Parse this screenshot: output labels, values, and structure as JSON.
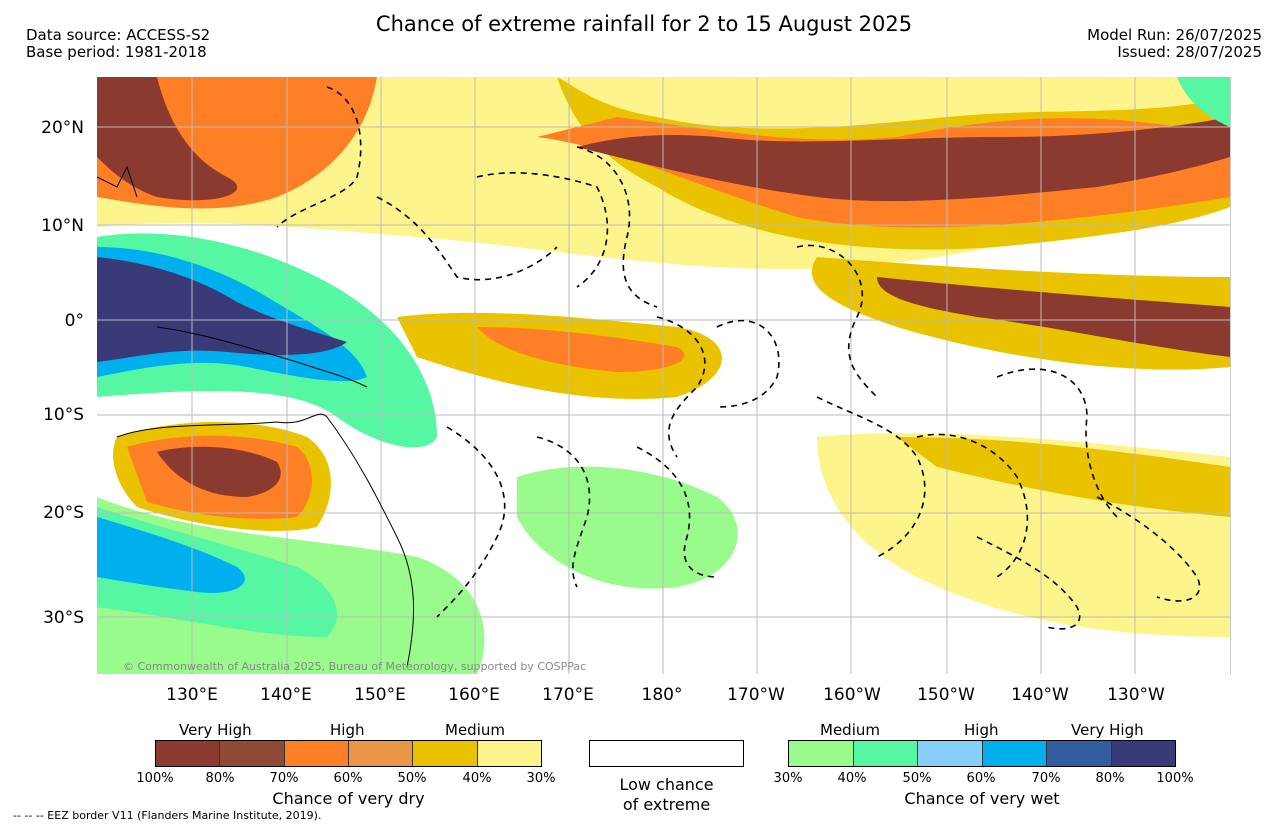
{
  "title": "Chance of extreme rainfall for 2 to 15 August 2025",
  "data_source": "Data source: ACCESS-S2",
  "base_period": "Base period: 1981-2018",
  "model_run": "Model Run: 26/07/2025",
  "issued": "Issued: 28/07/2025",
  "copyright": "© Commonwealth of Australia 2025, Bureau of Meteorology, supported by COSPPac",
  "eez_note": "-- -- -- EEZ border V11 (Flanders Marine Institute, 2019).",
  "lat_labels": [
    "20°N",
    "10°N",
    "0°",
    "10°S",
    "20°S",
    "30°S"
  ],
  "lon_labels": [
    "130°E",
    "140°E",
    "150°E",
    "160°E",
    "170°E",
    "180°",
    "170°W",
    "160°W",
    "150°W",
    "140°W",
    "130°W"
  ],
  "legend_dry": {
    "categories": [
      "Very High",
      "High",
      "Medium"
    ],
    "ticks": [
      "100%",
      "80%",
      "70%",
      "60%",
      "50%",
      "40%",
      "30%"
    ],
    "colors": [
      "#8b3a2f",
      "#8f4a36",
      "#ff7f27",
      "#eb9748",
      "#eac300",
      "#fdf58b"
    ],
    "title": "Chance of very dry"
  },
  "legend_low": {
    "line1": "Low chance",
    "line2": "of extreme",
    "color": "#ffffff"
  },
  "legend_wet": {
    "categories": [
      "Medium",
      "High",
      "Very High"
    ],
    "ticks": [
      "30%",
      "40%",
      "50%",
      "60%",
      "70%",
      "80%",
      "100%"
    ],
    "colors": [
      "#98fb8b",
      "#55f7a3",
      "#87cefa",
      "#00b0ee",
      "#315d9e",
      "#3b3a78"
    ],
    "title": "Chance of very wet"
  }
}
